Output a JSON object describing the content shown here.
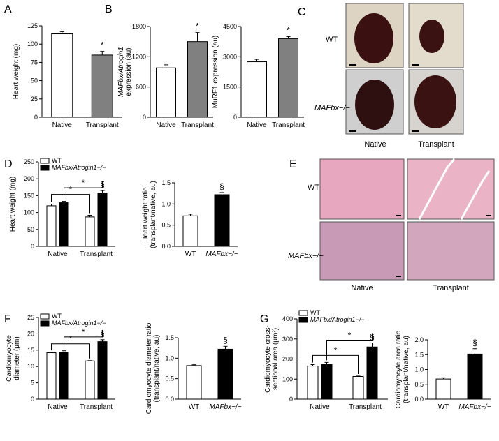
{
  "panels": [
    "A",
    "B",
    "C",
    "D",
    "E",
    "F",
    "G"
  ],
  "chart_data": [
    {
      "type": "bar",
      "ylabel": [
        "Heart weight (mg)"
      ],
      "categories": [
        "Native",
        "Transplant"
      ],
      "values": [
        114,
        85
      ],
      "errors": [
        3,
        5
      ],
      "colors": [
        "#ffffff",
        "#808080"
      ],
      "annotations": [
        null,
        "*"
      ],
      "ylim": [
        0,
        125
      ],
      "yticks": [
        0,
        25,
        50,
        75,
        100,
        125
      ]
    },
    {
      "type": "bar",
      "ylabel": [
        "MAFbx/Atrogin1",
        "expression (au)"
      ],
      "categories": [
        "Native",
        "Transplant"
      ],
      "values": [
        980,
        1500
      ],
      "errors": [
        60,
        180
      ],
      "colors": [
        "#ffffff",
        "#808080"
      ],
      "annotations": [
        null,
        "*"
      ],
      "ylim": [
        0,
        1800
      ],
      "yticks": [
        0,
        600,
        1200,
        1800
      ]
    },
    {
      "type": "bar",
      "ylabel": [
        "MuRF1 expression (au)"
      ],
      "categories": [
        "Native",
        "Transplant"
      ],
      "values": [
        2750,
        3900
      ],
      "errors": [
        120,
        100
      ],
      "colors": [
        "#ffffff",
        "#808080"
      ],
      "annotations": [
        null,
        "*"
      ],
      "ylim": [
        0,
        4500
      ],
      "yticks": [
        0,
        1500,
        3000,
        4500
      ]
    },
    {
      "type": "grouped_bar",
      "ylabel": [
        "Heart weight (mg)"
      ],
      "categories": [
        "Native",
        "Transplant"
      ],
      "series": [
        {
          "name": "WT",
          "color": "#ffffff",
          "values": [
            120,
            87
          ],
          "errors": [
            5,
            5
          ],
          "annotations": [
            null,
            null
          ]
        },
        {
          "name": "MAFbx/Atrogin1−/−",
          "color": "#000000",
          "values": [
            129,
            158
          ],
          "errors": [
            4,
            7
          ],
          "annotations": [
            null,
            "§"
          ]
        }
      ],
      "brackets": [
        "*",
        "*"
      ],
      "ylim": [
        0,
        250
      ],
      "yticks": [
        0,
        50,
        100,
        150,
        200,
        250
      ]
    },
    {
      "type": "bar",
      "ylabel": [
        "Heart weight ratio",
        "(transplant/native, au)"
      ],
      "categories": [
        "WT",
        "MAFbx−/−"
      ],
      "values": [
        0.72,
        1.22
      ],
      "errors": [
        0.04,
        0.05
      ],
      "colors": [
        "#ffffff",
        "#000000"
      ],
      "annotations": [
        null,
        "§"
      ],
      "ylim": [
        0,
        1.5
      ],
      "yticks": [
        {
          "value": 0,
          "label": "0.0"
        },
        0.5,
        {
          "value": 1,
          "label": "1.0"
        },
        1.5
      ]
    },
    {
      "type": "grouped_bar",
      "ylabel": [
        "Cardiomyocyte",
        "diameter (μm)"
      ],
      "categories": [
        "Native",
        "Transplant"
      ],
      "series": [
        {
          "name": "WT",
          "color": "#ffffff",
          "values": [
            14.2,
            11.7
          ],
          "errors": [
            0.2,
            0.1
          ],
          "annotations": [
            null,
            null
          ]
        },
        {
          "name": "MAFbx/Atrogin1−/−",
          "color": "#000000",
          "values": [
            14.4,
            17.6
          ],
          "errors": [
            0.4,
            0.6
          ],
          "annotations": [
            null,
            "§"
          ]
        }
      ],
      "brackets": [
        "*",
        "*"
      ],
      "ylim": [
        0,
        25
      ],
      "yticks": [
        0,
        5,
        10,
        15,
        20,
        25
      ]
    },
    {
      "type": "bar",
      "ylabel": [
        "Cardiomyocyte diameter ratio",
        "(transplant/native, au)"
      ],
      "categories": [
        "WT",
        "MAFbx−/−"
      ],
      "values": [
        0.82,
        1.22
      ],
      "errors": [
        0.02,
        0.07
      ],
      "colors": [
        "#ffffff",
        "#000000"
      ],
      "annotations": [
        null,
        "§"
      ],
      "ylim": [
        0,
        1.5
      ],
      "yticks": [
        {
          "value": 0,
          "label": "0.0"
        },
        0.5,
        {
          "value": 1,
          "label": "1.0"
        },
        1.5
      ]
    },
    {
      "type": "grouped_bar",
      "ylabel": [
        "Cardiomyocyte cross-",
        "sectional area (μm²)"
      ],
      "categories": [
        "Native",
        "Transplant"
      ],
      "series": [
        {
          "name": "WT",
          "color": "#ffffff",
          "values": [
            165,
            113
          ],
          "errors": [
            7,
            2
          ],
          "annotations": [
            null,
            null
          ]
        },
        {
          "name": "MAFbx/Atrogin1−/−",
          "color": "#000000",
          "values": [
            173,
            260
          ],
          "errors": [
            10,
            20
          ],
          "annotations": [
            null,
            "§"
          ]
        }
      ],
      "brackets": [
        "*",
        "*"
      ],
      "ylim": [
        0,
        400
      ],
      "yticks": [
        0,
        100,
        200,
        300,
        400
      ]
    },
    {
      "type": "bar",
      "ylabel": [
        "Cardiomyocyte area ratio",
        "(transplant/native, au)"
      ],
      "categories": [
        "WT",
        "MAFbx−/−"
      ],
      "values": [
        0.68,
        1.52
      ],
      "errors": [
        0.04,
        0.18
      ],
      "colors": [
        "#ffffff",
        "#000000"
      ],
      "annotations": [
        null,
        "§"
      ],
      "ylim": [
        0,
        2
      ],
      "yticks": [
        {
          "value": 0,
          "label": "0.0"
        },
        0.5,
        {
          "value": 1,
          "label": "1.0"
        },
        1.5,
        {
          "value": 2,
          "label": "2.0"
        }
      ]
    }
  ],
  "images": {
    "c": {
      "rows": [
        "WT",
        "MAFbx−/−"
      ],
      "cols": [
        "Native",
        "Transplant"
      ]
    },
    "e": {
      "rows": [
        "WT",
        "MAFbx−/−"
      ],
      "cols": [
        "Native",
        "Transplant"
      ]
    }
  }
}
